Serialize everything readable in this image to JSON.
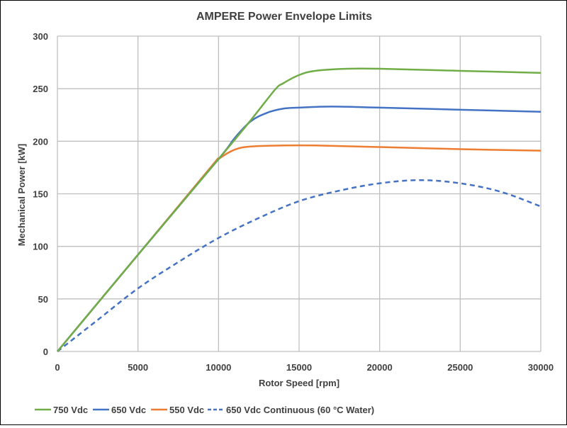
{
  "chart_data": {
    "type": "line",
    "title": "AMPERE Power Envelope Limits",
    "xlabel": "Rotor Speed [rpm]",
    "ylabel": "Mechanical Power [kW]",
    "xlim": [
      0,
      30000
    ],
    "ylim": [
      0,
      300
    ],
    "xticks": [
      0,
      5000,
      10000,
      15000,
      20000,
      25000,
      30000
    ],
    "yticks": [
      0,
      50,
      100,
      150,
      200,
      250,
      300
    ],
    "grid": true,
    "legend_position": "bottom",
    "series": [
      {
        "name": "750 Vdc",
        "color": "#70AD47",
        "dashed": false,
        "x": [
          0,
          5000,
          10000,
          12000,
          13500,
          14000,
          15000,
          16000,
          18000,
          20000,
          25000,
          30000
        ],
        "y": [
          0,
          92,
          183,
          220,
          249,
          255,
          263,
          267,
          269,
          269,
          267,
          265
        ]
      },
      {
        "name": "650 Vdc",
        "color": "#4472C4",
        "dashed": false,
        "x": [
          0,
          5000,
          10000,
          11000,
          12000,
          13000,
          14000,
          15000,
          17000,
          20000,
          25000,
          30000
        ],
        "y": [
          0,
          92,
          183,
          203,
          219,
          227,
          231,
          232,
          233,
          232,
          230,
          228
        ]
      },
      {
        "name": "550 Vdc",
        "color": "#ED7D31",
        "dashed": false,
        "x": [
          0,
          5000,
          9500,
          10000,
          11000,
          12000,
          14000,
          16000,
          20000,
          25000,
          30000
        ],
        "y": [
          0,
          92,
          175,
          183,
          192,
          195,
          196,
          196,
          194.5,
          192.5,
          191
        ]
      },
      {
        "name": "650 Vdc Continuous (60 °C Water)",
        "color": "#4472C4",
        "dashed": true,
        "x": [
          0,
          2500,
          5000,
          7500,
          10000,
          12500,
          15000,
          17500,
          20000,
          22500,
          25000,
          27500,
          30000
        ],
        "y": [
          0,
          30,
          60,
          85,
          108,
          127,
          143,
          153,
          160,
          163,
          160,
          152,
          138
        ]
      }
    ]
  }
}
